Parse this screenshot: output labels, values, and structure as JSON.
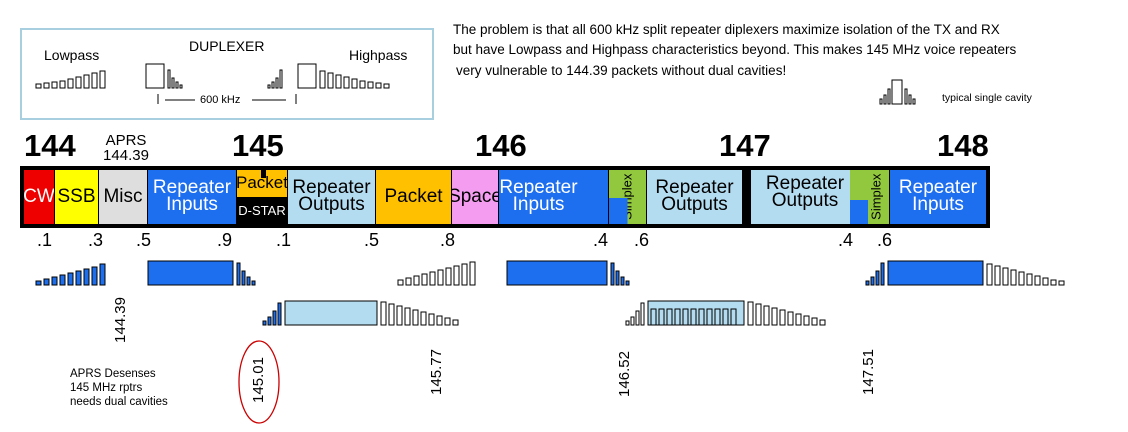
{
  "duplexer": {
    "title": "DUPLEXER",
    "lowpass_label": "Lowpass",
    "highpass_label": "Highpass",
    "spacing_label": "600 kHz"
  },
  "note": {
    "line1": "The problem is that all 600 kHz split repeater diplexers maximize isolation of the TX and RX",
    "line2": "but have Lowpass and Highpass characteristics beyond.  This makes 145 MHz voice repeaters",
    "line3": "very vulnerable to 144.39 packets without dual cavities!",
    "cavity_label": "typical  single cavity"
  },
  "band": {
    "mhz_labels": [
      "144",
      "145",
      "146",
      "147",
      "148"
    ],
    "aprs_label": "APRS",
    "aprs_freq": "144.39",
    "segments": [
      {
        "id": "cw",
        "label": "CW",
        "color": "#ee0000",
        "text_color": "#ffffff"
      },
      {
        "id": "ssb",
        "label": "SSB",
        "color": "#ffff00",
        "text_color": "#000000"
      },
      {
        "id": "misc",
        "label": "Misc",
        "color": "#dedede",
        "text_color": "#000000"
      },
      {
        "id": "rep-in-1",
        "label": "Repeater Inputs",
        "color": "#1e6ff0",
        "text_color": "#ffffff"
      },
      {
        "id": "packet-1",
        "label": "Packet",
        "color": "#ffc000",
        "text_color": "#000000"
      },
      {
        "id": "dstar",
        "label": "D-STAR",
        "color": "#000000",
        "text_color": "#ffffff"
      },
      {
        "id": "rep-out-1",
        "label": "Repeater Outputs",
        "color": "#b4dcf0",
        "text_color": "#000000"
      },
      {
        "id": "packet-2",
        "label": "Packet",
        "color": "#ffc000",
        "text_color": "#000000"
      },
      {
        "id": "space",
        "label": "Space",
        "color": "#f49cf0",
        "text_color": "#000000"
      },
      {
        "id": "rep-in-2",
        "label": "Repeater Inputs",
        "color": "#1e6ff0",
        "text_color": "#ffffff"
      },
      {
        "id": "simplex-1",
        "label": "Simplex",
        "color": "#92c83e",
        "text_color": "#000000"
      },
      {
        "id": "rep-out-2",
        "label": "Repeater Outputs",
        "color": "#b4dcf0",
        "text_color": "#000000"
      },
      {
        "id": "rep-out-3",
        "label": "Repeater Outputs",
        "color": "#b4dcf0",
        "text_color": "#000000"
      },
      {
        "id": "simplex-2",
        "label": "Simplex",
        "color": "#92c83e",
        "text_color": "#000000"
      },
      {
        "id": "rep-in-3",
        "label": "Repeater Inputs",
        "color": "#1e6ff0",
        "text_color": "#ffffff"
      }
    ],
    "sub_ticks": [
      ".1",
      ".3",
      ".5",
      ".9",
      ".1",
      ".5",
      ".8",
      ".4",
      ".6",
      ".4",
      ".6"
    ]
  },
  "frequencies": [
    "144.39",
    "145.01",
    "145.77",
    "146.52",
    "147.51"
  ],
  "aprs_note": {
    "line1": "APRS Desenses",
    "line2": "145 MHz rptrs",
    "line3": "needs dual cavities"
  },
  "colors": {
    "input_blue": "#1e6ff0",
    "output_light": "#b4dcf0",
    "highlight_circle": "#cc0000",
    "box_border": "#a8cfe0"
  }
}
